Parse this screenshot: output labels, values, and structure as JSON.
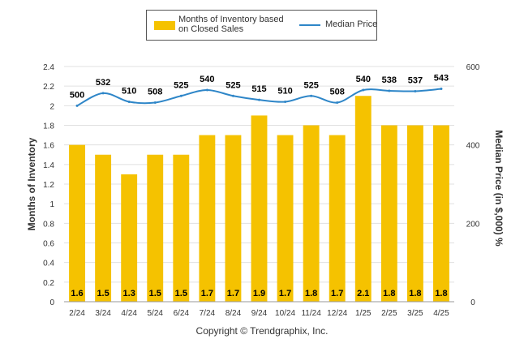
{
  "legend": {
    "bars_label_line1": "Months of Inventory based",
    "bars_label_line2": "on Closed Sales",
    "line_label": "Median Price"
  },
  "copyright": "Copyright © Trendgraphix, Inc.",
  "colors": {
    "bar": "#F5C200",
    "line": "#2E86C8",
    "grid": "#E0E0E0",
    "bar_label_text": "#000000"
  },
  "chart_data": {
    "type": "bar",
    "categories": [
      "2/24",
      "3/24",
      "4/24",
      "5/24",
      "6/24",
      "7/24",
      "8/24",
      "9/24",
      "10/24",
      "11/24",
      "12/24",
      "1/25",
      "2/25",
      "3/25",
      "4/25"
    ],
    "series": [
      {
        "name": "Months of Inventory based on Closed Sales",
        "type": "bar",
        "axis": "left",
        "values": [
          1.6,
          1.5,
          1.3,
          1.5,
          1.5,
          1.7,
          1.7,
          1.9,
          1.7,
          1.8,
          1.7,
          2.1,
          1.8,
          1.8,
          1.8
        ],
        "labels": [
          "1.6",
          "1.5",
          "1.3",
          "1.5",
          "1.5",
          "1.7",
          "1.7",
          "1.9",
          "1.7",
          "1.8",
          "1.7",
          "2.1",
          "1.8",
          "1.8",
          "1.8"
        ]
      },
      {
        "name": "Median Price",
        "type": "line",
        "axis": "right",
        "values": [
          500,
          532,
          510,
          508,
          525,
          540,
          525,
          515,
          510,
          525,
          508,
          540,
          538,
          537,
          543
        ],
        "labels": [
          "500",
          "532",
          "510",
          "508",
          "525",
          "540",
          "525",
          "515",
          "510",
          "525",
          "508",
          "540",
          "538",
          "537",
          "543"
        ]
      }
    ],
    "ylabel": "Months of Inventory",
    "y2label": "Median Price (in $,000) %",
    "ylim": [
      0,
      2.4
    ],
    "y2lim": [
      0,
      600
    ],
    "yticks": [
      "0",
      "0.2",
      "0.4",
      "0.6",
      "0.8",
      "1",
      "1.2",
      "1.4",
      "1.6",
      "1.8",
      "2",
      "2.2",
      "2.4"
    ],
    "y2ticks": [
      "0",
      "200",
      "400",
      "600"
    ],
    "grid": true,
    "legend_position": "top"
  }
}
